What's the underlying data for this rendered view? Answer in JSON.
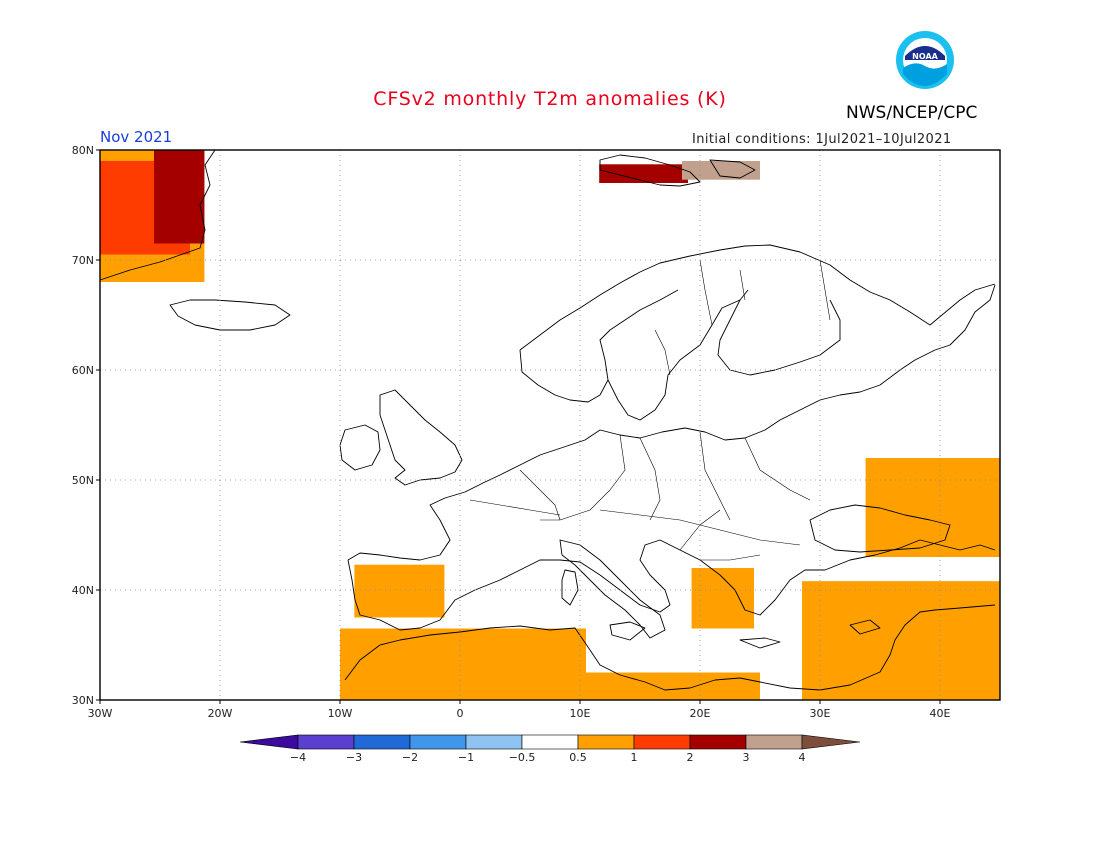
{
  "title": "CFSv2 monthly T2m anomalies (K)",
  "org": "NWS/NCEP/CPC",
  "logo_text": "NOAA",
  "period": "Nov 2021",
  "initial_conditions": "Initial conditions: 1Jul2021–10Jul2021",
  "chart_data": {
    "type": "heatmap",
    "title": "CFSv2 monthly T2m anomalies (K)",
    "units": "K",
    "domain": {
      "lon": [
        -30,
        45
      ],
      "lat": [
        30,
        80
      ]
    },
    "lon_ticks": [
      "30W",
      "20W",
      "10W",
      "0",
      "10E",
      "20E",
      "30E",
      "40E"
    ],
    "lon_tick_values": [
      -30,
      -20,
      -10,
      0,
      10,
      20,
      30,
      40
    ],
    "lat_ticks": [
      "30N",
      "40N",
      "50N",
      "60N",
      "70N",
      "80N"
    ],
    "lat_tick_values": [
      30,
      40,
      50,
      60,
      70,
      80
    ],
    "grid": "dotted",
    "colorbar": {
      "labels": [
        "−4",
        "−3",
        "−2",
        "−1",
        "−0.5",
        "0.5",
        "1",
        "2",
        "3",
        "4"
      ],
      "bins": [
        {
          "range": "< -4",
          "color": "#3d0a9e"
        },
        {
          "range": "-4 to -3",
          "color": "#5a3fd0"
        },
        {
          "range": "-3 to -2",
          "color": "#1f6ad6"
        },
        {
          "range": "-2 to -1",
          "color": "#3f96ea"
        },
        {
          "range": "-1 to -0.5",
          "color": "#8ec3f2"
        },
        {
          "range": "-0.5 to 0.5",
          "color": "#ffffff"
        },
        {
          "range": "0.5 to 1",
          "color": "#ffa000"
        },
        {
          "range": "1 to 2",
          "color": "#ff3c00"
        },
        {
          "range": "2 to 3",
          "color": "#a50000"
        },
        {
          "range": "3 to 4",
          "color": "#c2a08e"
        },
        {
          "range": "> 4",
          "color": "#7d4e3c"
        }
      ]
    },
    "regions": [
      {
        "name": "Greenland east",
        "lon": [
          -30,
          -21.3
        ],
        "lat": [
          68,
          80
        ],
        "anomaly_bin": "0.5 to 1"
      },
      {
        "name": "Greenland north-east",
        "lon": [
          -30,
          -22.5
        ],
        "lat": [
          70.5,
          79
        ],
        "anomaly_bin": "1 to 2"
      },
      {
        "name": "Greenland coast",
        "lon": [
          -25.5,
          -21.3
        ],
        "lat": [
          71.5,
          80
        ],
        "anomaly_bin": "2 to 3"
      },
      {
        "name": "Svalbard",
        "lon": [
          11.6,
          19
        ],
        "lat": [
          77,
          78.7
        ],
        "anomaly_bin": "2 to 3"
      },
      {
        "name": "Svalbard east",
        "lon": [
          18.5,
          25
        ],
        "lat": [
          77.3,
          79
        ],
        "anomaly_bin": "3 to 4"
      },
      {
        "name": "Iberia",
        "lon": [
          -8.8,
          -1.3
        ],
        "lat": [
          37.5,
          42.3
        ],
        "anomaly_bin": "0.5 to 1"
      },
      {
        "name": "North Africa",
        "lon": [
          -10,
          10.5
        ],
        "lat": [
          30,
          36.5
        ],
        "anomaly_bin": "0.5 to 1"
      },
      {
        "name": "Libya / Egypt coast",
        "lon": [
          10.5,
          25
        ],
        "lat": [
          30,
          32.5
        ],
        "anomaly_bin": "0.5 to 1"
      },
      {
        "name": "Greece",
        "lon": [
          19.3,
          24.5
        ],
        "lat": [
          36.5,
          42
        ],
        "anomaly_bin": "0.5 to 1"
      },
      {
        "name": "Ukraine / Russia",
        "lon": [
          33.8,
          45
        ],
        "lat": [
          43,
          52
        ],
        "anomaly_bin": "0.5 to 1"
      },
      {
        "name": "Turkey / Levant",
        "lon": [
          28.5,
          45
        ],
        "lat": [
          30,
          40.8
        ],
        "anomaly_bin": "0.5 to 1"
      }
    ]
  }
}
